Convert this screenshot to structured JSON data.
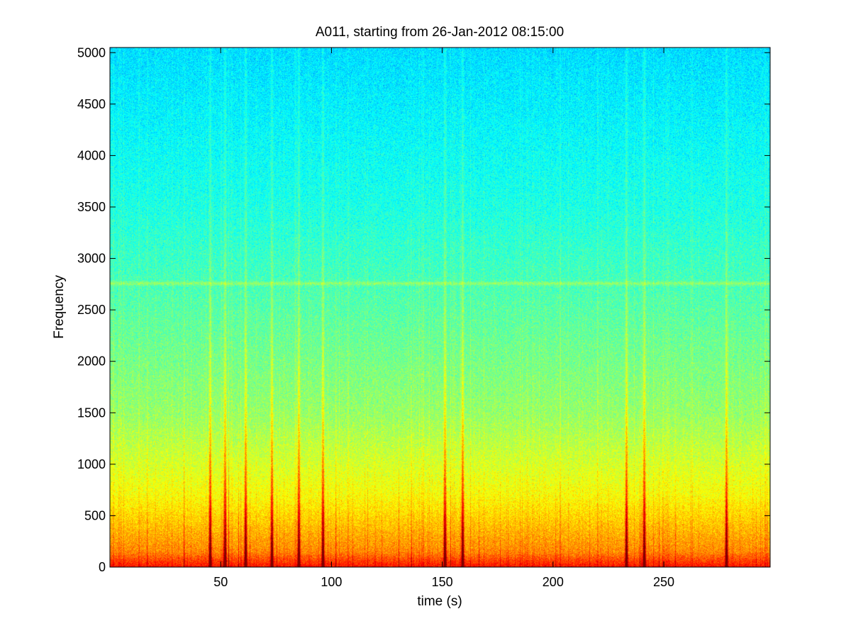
{
  "chart_data": {
    "type": "heatmap",
    "title": "A011, starting from 26-Jan-2012 08:15:00",
    "xlabel": "time (s)",
    "ylabel": "Frequency",
    "xlim": [
      0,
      298
    ],
    "ylim": [
      0,
      5050
    ],
    "x_ticks": [
      50,
      100,
      150,
      200,
      250
    ],
    "y_ticks": [
      0,
      500,
      1000,
      1500,
      2000,
      2500,
      3000,
      3500,
      4000,
      4500,
      5000
    ],
    "grid": false,
    "colormap": "jet",
    "bands": [
      {
        "freq": [
          0,
          150
        ],
        "level": "red"
      },
      {
        "freq": [
          150,
          700
        ],
        "level": "yellow"
      },
      {
        "freq": [
          700,
          1500
        ],
        "level": "yellow-green"
      },
      {
        "freq": [
          1500,
          3500
        ],
        "level": "green-cyan"
      },
      {
        "freq": [
          3500,
          5050
        ],
        "level": "cyan-blue"
      }
    ],
    "tonal_line_freq": 2760,
    "transient_times": [
      45,
      52,
      61,
      73,
      85,
      96,
      151,
      159,
      233,
      241,
      278
    ]
  }
}
